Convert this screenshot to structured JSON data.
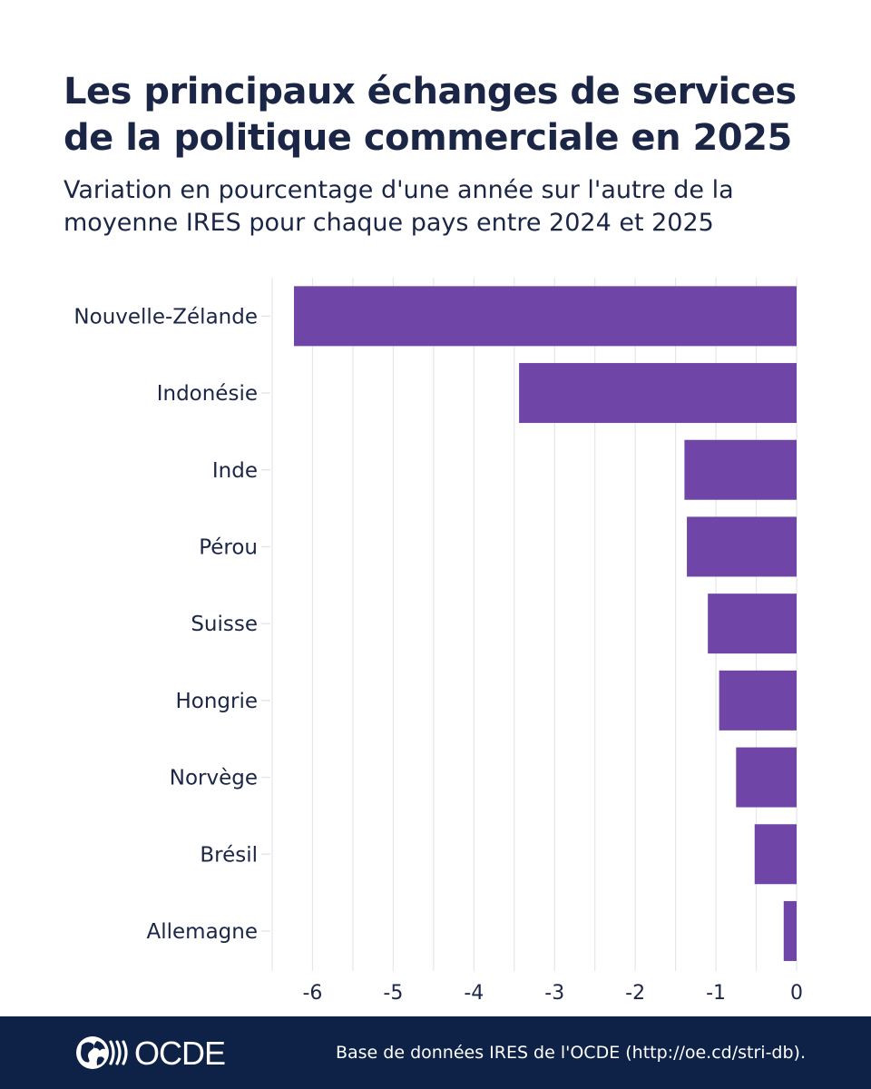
{
  "title": "Les principaux échanges de services de la politique commerciale en 2025",
  "subtitle": "Variation en pourcentage d'une année sur l'autre de la moyenne IRES pour chaque pays entre 2024 et 2025",
  "footer": {
    "logo_text": "OCDE",
    "source": "Base de données IRES de l'OCDE (http://oe.cd/stri-db)."
  },
  "colors": {
    "bar": "#6f45a8",
    "grid": "#e3e6ec",
    "text": "#1b2646",
    "footer_bg": "#0e2146"
  },
  "chart_data": {
    "type": "bar",
    "orientation": "horizontal",
    "title": "Les principaux échanges de services de la politique commerciale en 2025",
    "subtitle": "Variation en pourcentage d'une année sur l'autre de la moyenne IRES pour chaque pays entre 2024 et 2025",
    "xlabel": "",
    "ylabel": "",
    "categories": [
      "Nouvelle-Zélande",
      "Indonésie",
      "Inde",
      "Pérou",
      "Suisse",
      "Hongrie",
      "Norvège",
      "Brésil",
      "Allemagne"
    ],
    "values": [
      -6.23,
      -3.44,
      -1.39,
      -1.36,
      -1.1,
      -0.96,
      -0.75,
      -0.52,
      -0.16
    ],
    "xlim": [
      -6.5,
      0
    ],
    "xticks": [
      -6,
      -5,
      -4,
      -3,
      -2,
      -1,
      0
    ],
    "xtick_labels": [
      "-6",
      "-5",
      "-4",
      "-3",
      "-2",
      "-1",
      "0"
    ],
    "grid": true,
    "legend": "none"
  }
}
